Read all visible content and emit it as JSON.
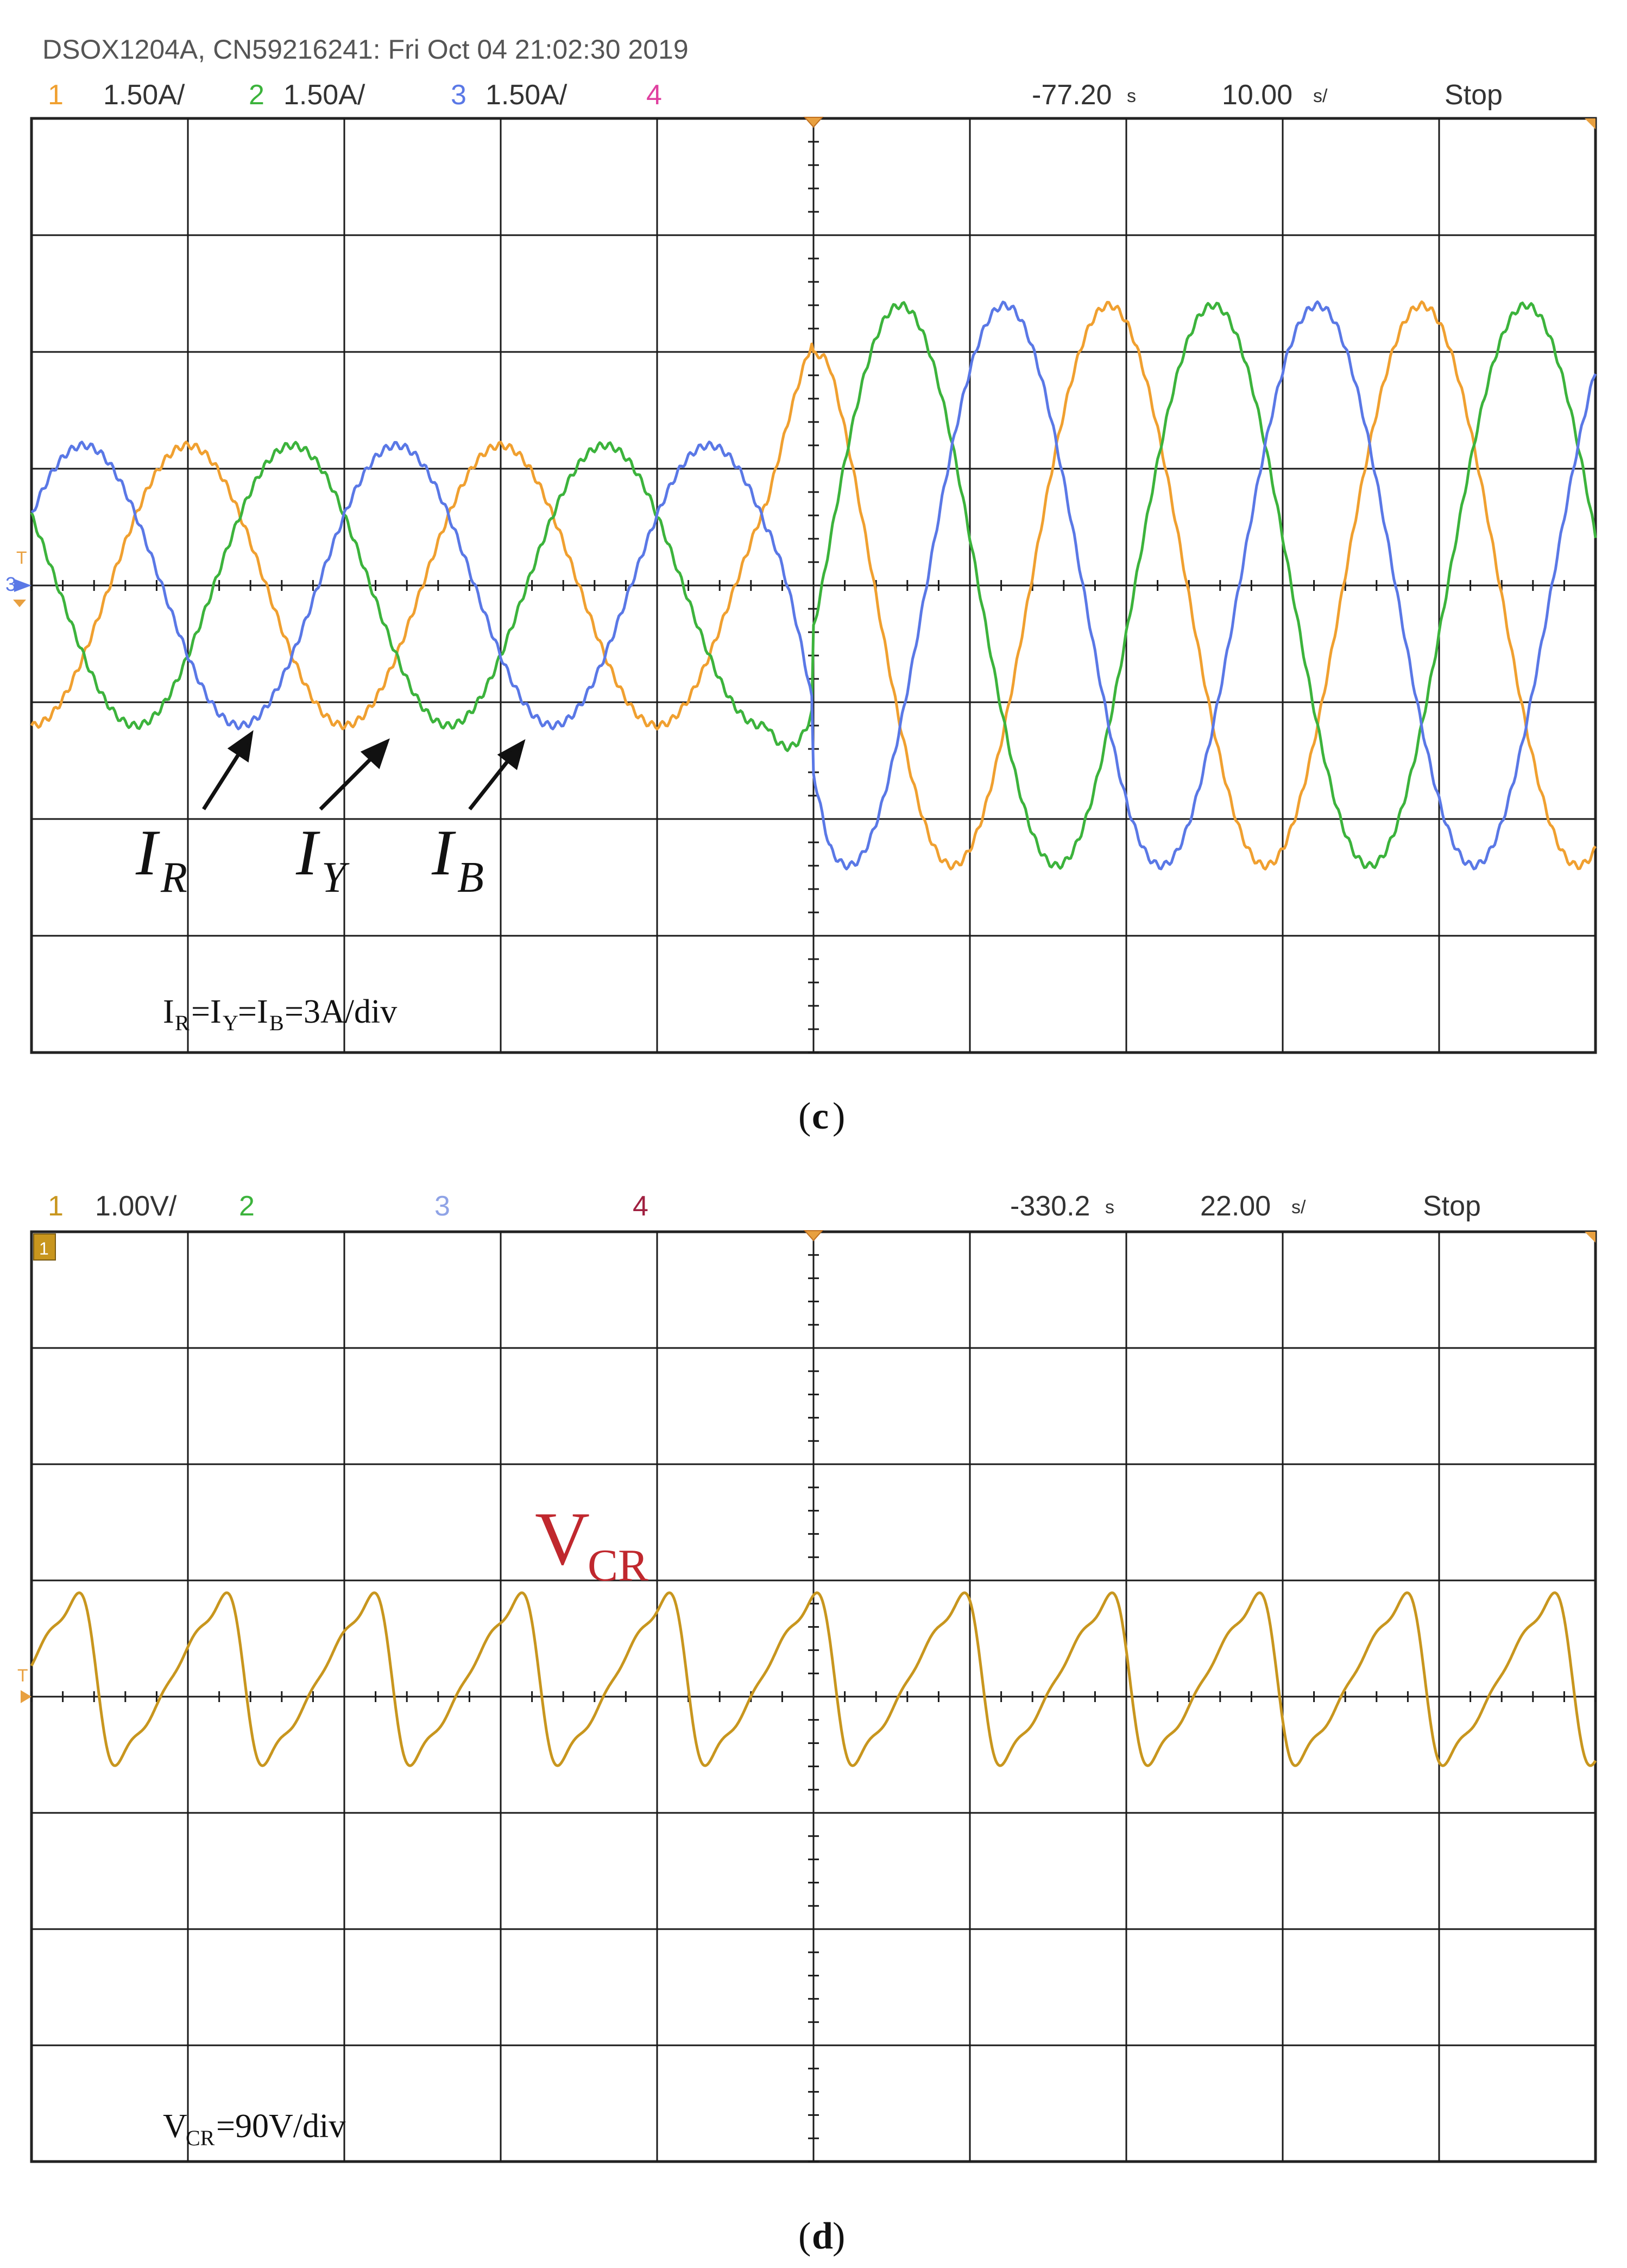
{
  "panel_c": {
    "instrument": "DSOX1204A, CN59216241: Fri Oct 04 21:02:30 2019",
    "channels": [
      {
        "num": "1",
        "scale": "1.50A/",
        "color": "#f0a030"
      },
      {
        "num": "2",
        "scale": "1.50A/",
        "color": "#3cb33c"
      },
      {
        "num": "3",
        "scale": "1.50A/",
        "color": "#5a78e6"
      },
      {
        "num": "4",
        "scale": "",
        "color": "#e040a0"
      }
    ],
    "delay": "-77.20",
    "timebase": "10.00",
    "run_state": "Stop",
    "ground_marker": "3",
    "labels": [
      {
        "base": "I",
        "sub": "R"
      },
      {
        "base": "I",
        "sub": "Y"
      },
      {
        "base": "I",
        "sub": "B"
      }
    ],
    "scale_note": {
      "a": "I",
      "a_sub": "R",
      "b": "=I",
      "b_sub": "Y",
      "c": "=I",
      "c_sub": "B",
      "d": "=3A/div"
    },
    "caption": "c"
  },
  "panel_d": {
    "channels": [
      {
        "num": "1",
        "scale": "1.00V/",
        "color": "#c8961e"
      },
      {
        "num": "2",
        "scale": "",
        "color": "#3cb33c"
      },
      {
        "num": "3",
        "scale": "",
        "color": "#8fa3e6"
      },
      {
        "num": "4",
        "scale": "",
        "color": "#a02040"
      }
    ],
    "delay": "-330.2",
    "timebase": "22.00",
    "run_state": "Stop",
    "ground_marker": "1",
    "label": {
      "base": "V",
      "sub": "CR"
    },
    "scale_note": {
      "a": "V",
      "a_sub": "CR",
      "b": "=90V/div"
    },
    "caption": "d"
  },
  "chart_data": [
    {
      "type": "line",
      "grid": true,
      "x_divisions": 10,
      "y_divisions": 8,
      "x_unit": "div",
      "y_unit": "div",
      "ylim": [
        -4,
        4
      ],
      "xlim": [
        0,
        10
      ],
      "step_at_div": 5,
      "series": [
        {
          "name": "I_R",
          "color": "#f0a030",
          "amp_before": 1.2,
          "amp_after": 2.4,
          "period_before": 2.0,
          "period_after": 2.0,
          "phase_deg": -90
        },
        {
          "name": "I_Y",
          "color": "#3cb33c",
          "amp_before": 1.2,
          "amp_after": 2.4,
          "period_before": 2.0,
          "period_after": 2.0,
          "phase_deg": 150
        },
        {
          "name": "I_B",
          "color": "#5a78e6",
          "amp_before": 1.2,
          "amp_after": 2.4,
          "period_before": 2.0,
          "period_after": 2.0,
          "phase_deg": 30
        }
      ]
    },
    {
      "type": "line",
      "grid": true,
      "x_divisions": 10,
      "y_divisions": 8,
      "x_unit": "div",
      "y_unit": "div",
      "ylim": [
        -4,
        4
      ],
      "xlim": [
        0,
        10
      ],
      "series": [
        {
          "name": "V_CR",
          "color": "#c8961e",
          "cycles": 10.6,
          "peak": 1.0,
          "trough": -0.6
        }
      ]
    }
  ]
}
